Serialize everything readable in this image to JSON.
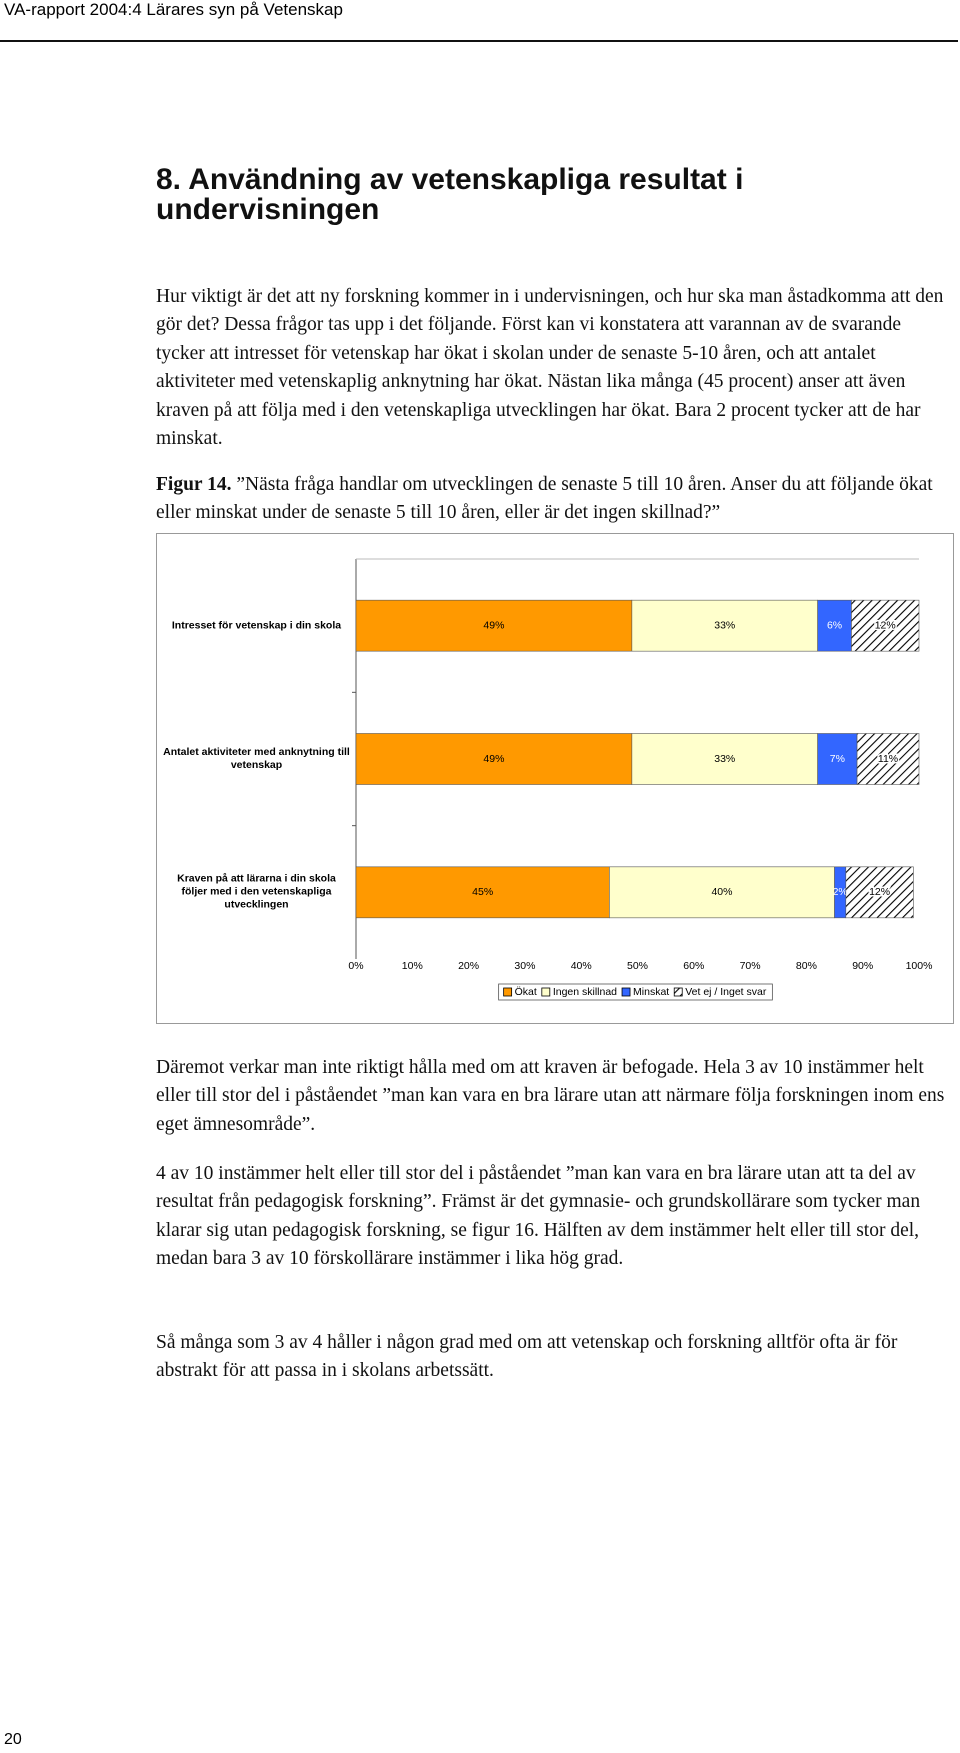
{
  "header": {
    "title": "VA-rapport 2004:4 Lärares syn på Vetenskap"
  },
  "heading": "8. Användning av vetenskapliga resultat i undervisningen",
  "intro": "Hur viktigt är det att ny forskning kommer in i undervisningen, och hur ska man åstadkomma att den gör det? Dessa frågor tas upp i det följande. Först kan vi konstatera att varannan av de svarande tycker att intresset för vetenskap har ökat i skolan under de senaste 5-10 åren, och att antalet aktiviteter med vetenskaplig anknytning har ökat. Nästan lika många (45 procent) anser att även kraven på att följa med i den vetenskapliga utvecklingen har ökat. Bara 2 procent tycker att de har minskat.",
  "caption": {
    "label": "Figur 14.",
    "text": "”Nästa fråga handlar om utvecklingen de senaste 5 till 10 åren. Anser du att följande ökat eller minskat under de senaste 5 till 10 åren, eller är det ingen skillnad?”"
  },
  "chart_data": {
    "type": "stacked-barh",
    "categories": [
      "Intresset för vetenskap i din skola",
      "Antalet aktiviteter med anknytning till vetenskap",
      "Kraven på att lärarna i din skola följer med i den vetenskapliga utvecklingen"
    ],
    "series": [
      {
        "name": "Ökat",
        "color": "#ff9900",
        "values": [
          49,
          49,
          45
        ],
        "value_labels": [
          "49%",
          "49%",
          "45%"
        ]
      },
      {
        "name": "Ingen skillnad",
        "color": "#ffffcc",
        "values": [
          33,
          33,
          40
        ],
        "value_labels": [
          "33%",
          "33%",
          "40%"
        ]
      },
      {
        "name": "Minskat",
        "color": "#3366ff",
        "values": [
          6,
          7,
          2
        ],
        "value_labels": [
          "6%",
          "7%",
          "2%"
        ]
      },
      {
        "name": "Vet ej / Inget svar",
        "color": "#ffffff",
        "hatch": true,
        "values": [
          12,
          11,
          12
        ],
        "value_labels": [
          "12%",
          "11%",
          "12%"
        ]
      }
    ],
    "xlim": [
      0,
      100
    ],
    "xticks": [
      {
        "value": 0,
        "label": "0%"
      },
      {
        "value": 10,
        "label": "10%"
      },
      {
        "value": 20,
        "label": "20%"
      },
      {
        "value": 30,
        "label": "30%"
      },
      {
        "value": 40,
        "label": "40%"
      },
      {
        "value": 50,
        "label": "50%"
      },
      {
        "value": 60,
        "label": "60%"
      },
      {
        "value": 70,
        "label": "70%"
      },
      {
        "value": 80,
        "label": "80%"
      },
      {
        "value": 90,
        "label": "90%"
      },
      {
        "value": 100,
        "label": "100%"
      }
    ],
    "legend": "bottom"
  },
  "paragraphs": [
    "Däremot verkar man inte riktigt hålla med om att kraven är befogade. Hela 3 av 10 instämmer helt eller till stor del i påståendet ”man kan vara en bra lärare utan att närmare följa forskningen inom ens eget ämnesområde”.",
    "4 av 10 instämmer helt eller till stor del i påståendet ”man kan vara en bra lärare utan att ta del av resultat från pedagogisk forskning”. Främst är det gymnasie- och grundskollärare som tycker man klarar sig utan pedagogisk forskning, se figur 16. Hälften av dem instämmer helt eller till stor del, medan bara 3 av 10 förskollärare instämmer i lika hög grad.",
    "Så många som 3 av 4 håller i någon grad med om att vetenskap och forskning alltför ofta är för abstrakt för att passa in i skolans arbetssätt."
  ],
  "page_number": "20"
}
